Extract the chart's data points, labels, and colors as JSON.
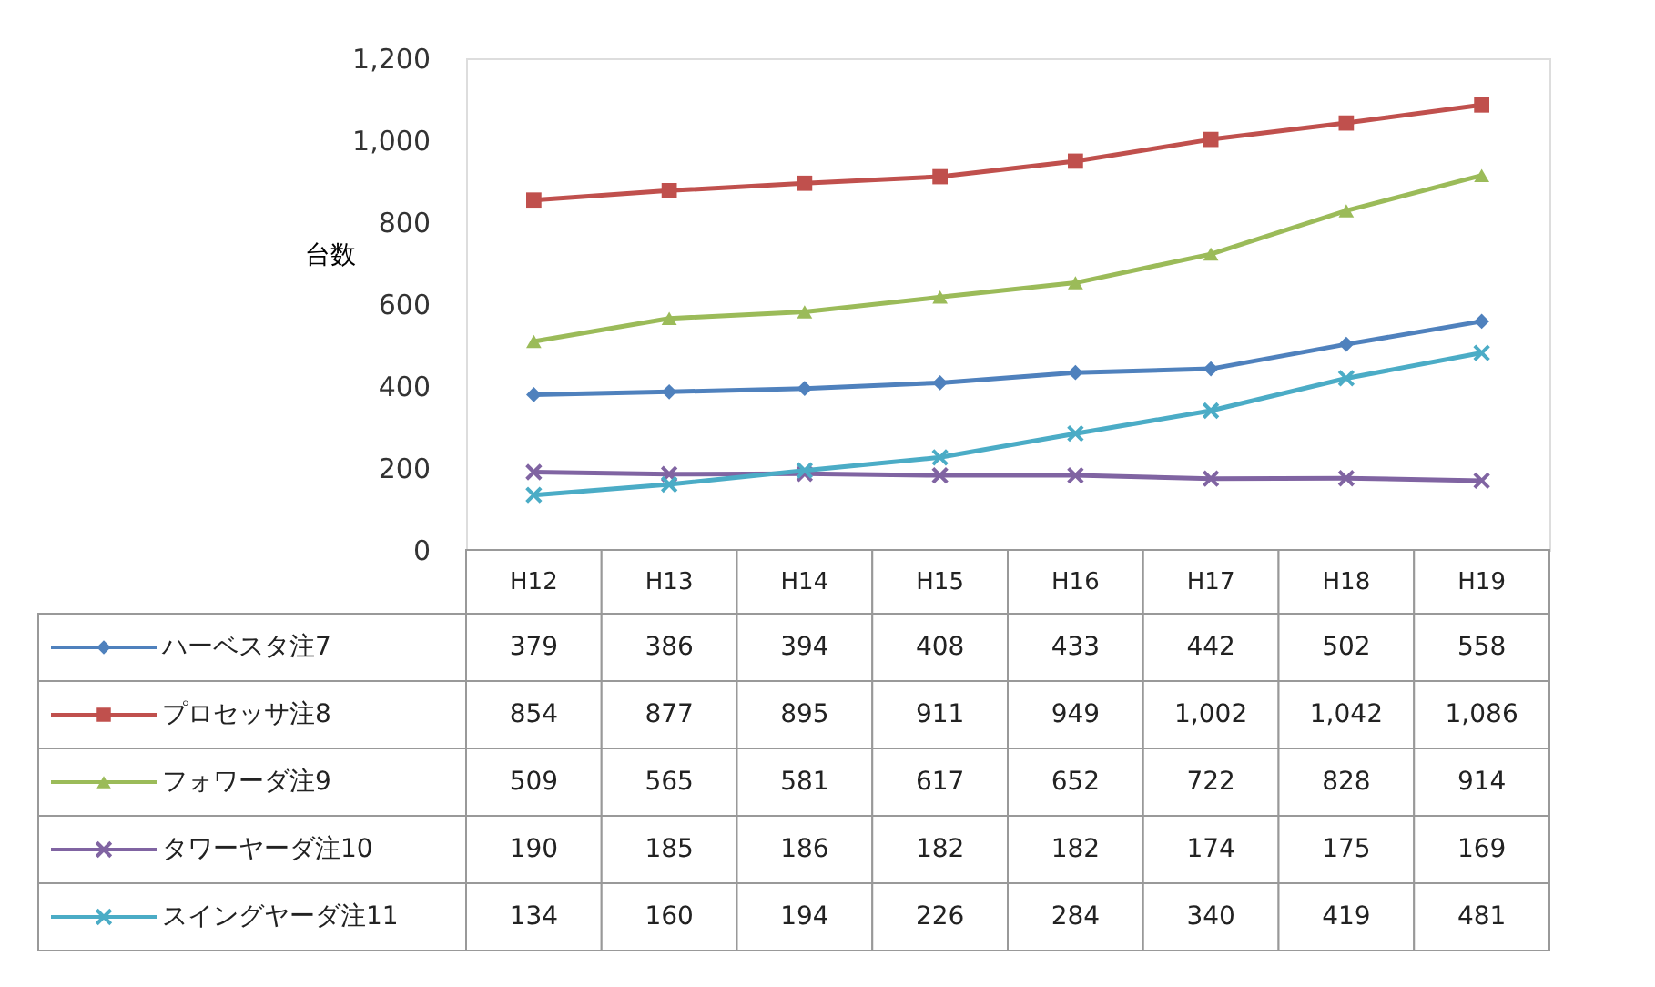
{
  "chart_data": {
    "type": "line",
    "ylabel": "台数",
    "categories": [
      "H12",
      "H13",
      "H14",
      "H15",
      "H16",
      "H17",
      "H18",
      "H19"
    ],
    "series": [
      {
        "name": "ハーベスタ注7",
        "color": "#4f81bd",
        "marker": "diamond",
        "values": [
          379,
          386,
          394,
          408,
          433,
          442,
          502,
          558
        ],
        "value_labels": [
          "379",
          "386",
          "394",
          "408",
          "433",
          "442",
          "502",
          "558"
        ]
      },
      {
        "name": "プロセッサ注8",
        "color": "#c0504d",
        "marker": "square",
        "values": [
          854,
          877,
          895,
          911,
          949,
          1002,
          1042,
          1086
        ],
        "value_labels": [
          "854",
          "877",
          "895",
          "911",
          "949",
          "1,002",
          "1,042",
          "1,086"
        ]
      },
      {
        "name": "フォワーダ注9",
        "color": "#9bbb59",
        "marker": "triangle",
        "values": [
          509,
          565,
          581,
          617,
          652,
          722,
          828,
          914
        ],
        "value_labels": [
          "509",
          "565",
          "581",
          "617",
          "652",
          "722",
          "828",
          "914"
        ]
      },
      {
        "name": "タワーヤーダ注10",
        "color": "#8064a2",
        "marker": "cross",
        "values": [
          190,
          185,
          186,
          182,
          182,
          174,
          175,
          169
        ],
        "value_labels": [
          "190",
          "185",
          "186",
          "182",
          "182",
          "174",
          "175",
          "169"
        ]
      },
      {
        "name": "スイングヤーダ注11",
        "color": "#4bacc6",
        "marker": "cross",
        "values": [
          134,
          160,
          194,
          226,
          284,
          340,
          419,
          481
        ],
        "value_labels": [
          "134",
          "160",
          "194",
          "226",
          "284",
          "340",
          "419",
          "481"
        ]
      }
    ],
    "ylim": [
      0,
      1200
    ],
    "yticks": [
      0,
      200,
      400,
      600,
      800,
      {
        "value": 1000,
        "label": "1,000"
      },
      {
        "value": 1200,
        "label": "1,200"
      }
    ],
    "grid": false,
    "legend": "bottom left"
  }
}
